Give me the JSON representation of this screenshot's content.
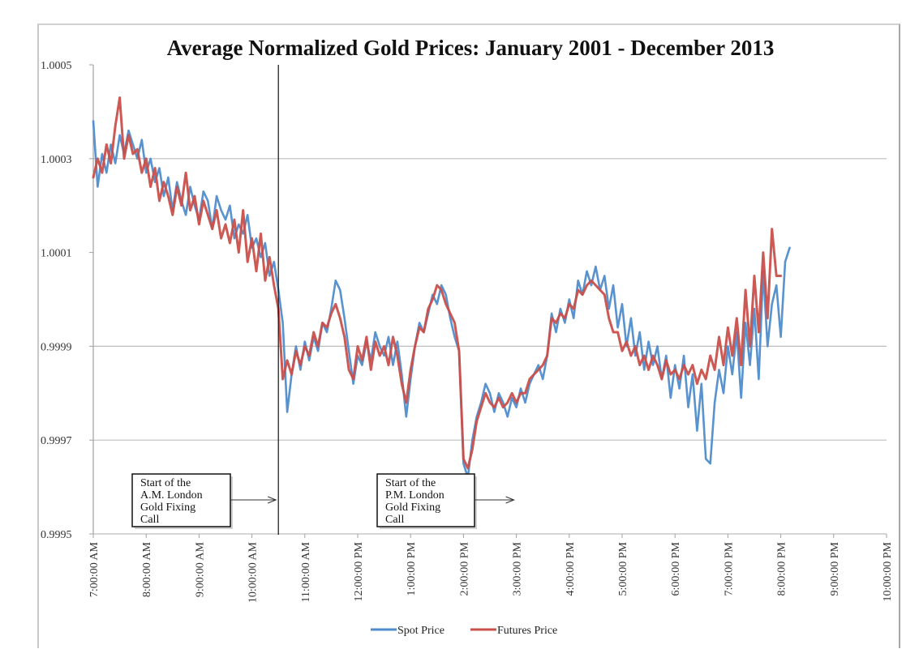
{
  "chart_data": {
    "type": "line",
    "title": "Average Normalized Gold Prices: January 2001 - December 2013",
    "xlabel": "",
    "ylabel": "",
    "ylim": [
      0.9995,
      1.0005
    ],
    "yticks": [
      {
        "value": 1.0005,
        "label": "1.0005"
      },
      {
        "value": 1.0003,
        "label": "1.0003"
      },
      {
        "value": 1.0001,
        "label": "1.0001"
      },
      {
        "value": 0.9999,
        "label": "0.9999"
      },
      {
        "value": 0.9997,
        "label": "0.9997"
      },
      {
        "value": 0.9995,
        "label": "0.9995"
      }
    ],
    "gridlines": [
      1.0003,
      0.9999,
      0.9997
    ],
    "x_unit": "hours since 7:00 AM",
    "xlim": [
      0,
      15
    ],
    "xticks": [
      {
        "value": 0,
        "label": "7:00:00 AM"
      },
      {
        "value": 1,
        "label": "8:00:00 AM"
      },
      {
        "value": 2,
        "label": "9:00:00 AM"
      },
      {
        "value": 3,
        "label": "10:00:00 AM"
      },
      {
        "value": 4,
        "label": "11:00:00 AM"
      },
      {
        "value": 5,
        "label": "12:00:00 PM"
      },
      {
        "value": 6,
        "label": "1:00:00 PM"
      },
      {
        "value": 7,
        "label": "2:00:00 PM"
      },
      {
        "value": 8,
        "label": "3:00:00 PM"
      },
      {
        "value": 9,
        "label": "4:00:00 PM"
      },
      {
        "value": 10,
        "label": "5:00:00 PM"
      },
      {
        "value": 11,
        "label": "6:00:00 PM"
      },
      {
        "value": 12,
        "label": "7:00:00 PM"
      },
      {
        "value": 13,
        "label": "8:00:00 PM"
      },
      {
        "value": 14,
        "label": "9:00:00 PM"
      },
      {
        "value": 15,
        "label": "10:00:00 PM"
      }
    ],
    "legend_position": "bottom",
    "sample_interval_minutes": 5,
    "series": [
      {
        "name": "Spot Price",
        "color": "#4f8ccc",
        "values": [
          1.00038,
          1.00024,
          1.00031,
          1.00027,
          1.00033,
          1.00029,
          1.00035,
          1.00031,
          1.00036,
          1.00033,
          1.0003,
          1.00034,
          1.00027,
          1.0003,
          1.00025,
          1.00028,
          1.00022,
          1.00026,
          1.00019,
          1.00025,
          1.00021,
          1.00018,
          1.00024,
          1.0002,
          1.00017,
          1.00023,
          1.00021,
          1.00015,
          1.00022,
          1.00019,
          1.00017,
          1.0002,
          1.00013,
          1.00016,
          1.00014,
          1.00018,
          1.00011,
          1.00013,
          1.00009,
          1.00012,
          1.00005,
          1.00008,
          1.00002,
          0.99995,
          0.99976,
          0.99984,
          0.9999,
          0.99985,
          0.99991,
          0.99987,
          0.99992,
          0.99989,
          0.99995,
          0.99993,
          0.99998,
          1.00004,
          1.00002,
          0.99996,
          0.99989,
          0.99982,
          0.99988,
          0.99986,
          0.99991,
          0.99987,
          0.99993,
          0.9999,
          0.99988,
          0.99992,
          0.99986,
          0.99991,
          0.99984,
          0.99975,
          0.99983,
          0.9999,
          0.99995,
          0.99993,
          0.99997,
          1.00001,
          0.99999,
          1.00003,
          1.00001,
          0.99996,
          0.99992,
          0.99989,
          0.99965,
          0.99962,
          0.9997,
          0.99975,
          0.99978,
          0.99982,
          0.9998,
          0.99976,
          0.9998,
          0.99978,
          0.99975,
          0.99979,
          0.99977,
          0.99981,
          0.99978,
          0.99982,
          0.99984,
          0.99986,
          0.99983,
          0.99988,
          0.99997,
          0.99993,
          0.99998,
          0.99995,
          1.0,
          0.99996,
          1.00004,
          1.00001,
          1.00006,
          1.00003,
          1.00007,
          1.00002,
          1.00005,
          0.99998,
          1.00003,
          0.99994,
          0.99999,
          0.9999,
          0.99996,
          0.99988,
          0.99993,
          0.99985,
          0.99991,
          0.99986,
          0.9999,
          0.99983,
          0.99988,
          0.99979,
          0.99986,
          0.99981,
          0.99988,
          0.99977,
          0.99984,
          0.99972,
          0.99982,
          0.99966,
          0.99965,
          0.99978,
          0.99985,
          0.9998,
          0.9999,
          0.99984,
          0.99993,
          0.99979,
          0.99995,
          0.99986,
          0.99998,
          0.99983,
          1.00006,
          0.9999,
          0.99999,
          1.00003,
          0.99992,
          1.00008,
          1.00011
        ],
        "x_start_hours": 0
      },
      {
        "name": "Futures Price",
        "color": "#c9504b",
        "values": [
          1.00026,
          1.0003,
          1.00027,
          1.00033,
          1.00029,
          1.00037,
          1.00043,
          1.0003,
          1.00035,
          1.00031,
          1.00032,
          1.00027,
          1.0003,
          1.00024,
          1.00028,
          1.00021,
          1.00025,
          1.00022,
          1.00018,
          1.00024,
          1.0002,
          1.00027,
          1.00019,
          1.00022,
          1.00016,
          1.00021,
          1.00018,
          1.00015,
          1.00019,
          1.00013,
          1.00016,
          1.00012,
          1.00017,
          1.0001,
          1.00019,
          1.00008,
          1.00013,
          1.00006,
          1.00014,
          1.00004,
          1.00009,
          1.00003,
          0.99998,
          0.99983,
          0.99987,
          0.99984,
          0.99989,
          0.99986,
          0.9999,
          0.99988,
          0.99993,
          0.9999,
          0.99995,
          0.99994,
          0.99997,
          0.99999,
          0.99996,
          0.99992,
          0.99985,
          0.99983,
          0.9999,
          0.99987,
          0.99992,
          0.99985,
          0.99991,
          0.99988,
          0.9999,
          0.99986,
          0.99992,
          0.99988,
          0.99982,
          0.99978,
          0.99985,
          0.9999,
          0.99994,
          0.99993,
          0.99998,
          1.0,
          1.00003,
          1.00002,
          0.99999,
          0.99997,
          0.99995,
          0.99989,
          0.99966,
          0.99964,
          0.99968,
          0.99974,
          0.99977,
          0.9998,
          0.99978,
          0.99977,
          0.99979,
          0.99977,
          0.99978,
          0.9998,
          0.99978,
          0.9998,
          0.9998,
          0.99983,
          0.99984,
          0.99985,
          0.99986,
          0.99988,
          0.99996,
          0.99995,
          0.99997,
          0.99996,
          0.99999,
          0.99998,
          1.00002,
          1.00001,
          1.00003,
          1.00004,
          1.00003,
          1.00002,
          1.00001,
          0.99996,
          0.99993,
          0.99993,
          0.99989,
          0.99991,
          0.99988,
          0.9999,
          0.99986,
          0.99988,
          0.99985,
          0.99988,
          0.99986,
          0.99983,
          0.99987,
          0.99984,
          0.99985,
          0.99983,
          0.99986,
          0.99984,
          0.99986,
          0.99982,
          0.99985,
          0.99983,
          0.99988,
          0.99985,
          0.99992,
          0.99986,
          0.99994,
          0.99988,
          0.99996,
          0.99986,
          1.00002,
          0.9999,
          1.00005,
          0.99993,
          1.0001,
          0.99996,
          1.00015,
          1.00005,
          1.00005
        ],
        "x_start_hours": 0
      }
    ],
    "vertical_marker": {
      "x_hours": 3.5,
      "label": "A.M. fixing marker line"
    },
    "annotations": [
      {
        "id": "am",
        "lines": [
          "Start of the",
          "A.M. London",
          "Gold Fixing",
          "Call"
        ],
        "arrow_target_hours": 3.5
      },
      {
        "id": "pm",
        "lines": [
          "Start of the",
          "P.M. London",
          "Gold Fixing",
          "Call"
        ],
        "arrow_target_hours": 8.0
      }
    ]
  }
}
